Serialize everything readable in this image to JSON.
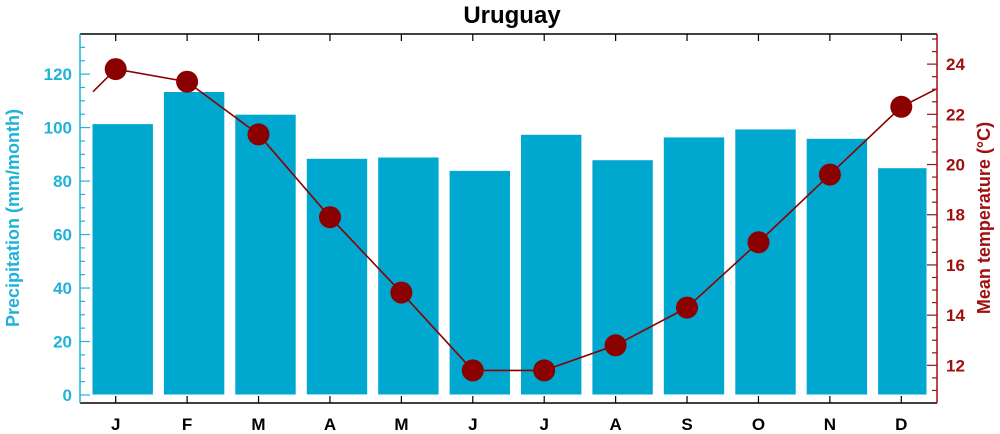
{
  "chart_data": {
    "type": "bar+line",
    "title": "Uruguay",
    "categories": [
      "J",
      "F",
      "M",
      "A",
      "M",
      "J",
      "J",
      "A",
      "S",
      "O",
      "N",
      "D"
    ],
    "series": [
      {
        "name": "Precipitation",
        "kind": "bar",
        "axis": "left",
        "values": [
          101.5,
          113.5,
          105,
          88.5,
          89,
          84,
          97.5,
          88,
          96.5,
          99.5,
          96,
          85
        ]
      },
      {
        "name": "Mean temperature",
        "kind": "line",
        "axis": "right",
        "values": [
          23.8,
          23.3,
          21.2,
          17.9,
          14.9,
          11.8,
          11.8,
          12.8,
          14.3,
          16.9,
          19.6,
          22.3
        ],
        "edge_values": [
          22.9,
          23.0
        ]
      }
    ],
    "ylabel_left": "Precipitation (mm/month)",
    "ylabel_right": "Mean temperature (°C)",
    "ylim_left": [
      -3,
      135
    ],
    "ylim_right": [
      10.5,
      25.2
    ],
    "yticks_left": [
      "0",
      "20",
      "40",
      "60",
      "80",
      "100",
      "120"
    ],
    "yticks_right": [
      "12",
      "14",
      "16",
      "18",
      "20",
      "22",
      "24"
    ],
    "colors": {
      "bars": "#00a8d0",
      "line": "#8b0000",
      "left_axis": "#1fb3d9",
      "right_axis": "#a01010"
    },
    "grid": false,
    "legend": "none"
  }
}
